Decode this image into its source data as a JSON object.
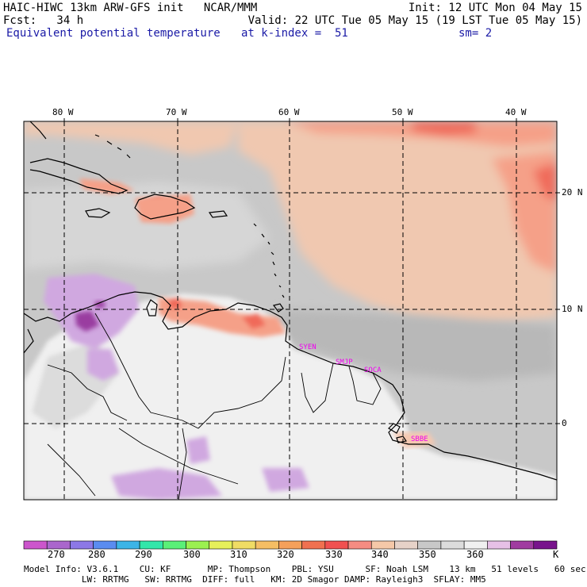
{
  "header": {
    "line1_left": "HAIC-HIWC 13km ARW-GFS init   NCAR/MMM",
    "line1_right": "Init: 12 UTC Mon 04 May 15",
    "line2_left": "Fcst:   34 h",
    "line2_right": "Valid: 22 UTC Tue 05 May 15 (19 LST Tue 05 May 15)",
    "line3_field": "Equivalent potential temperature",
    "line3_level": "at k-index =  51",
    "line3_smooth": "sm= 2"
  },
  "map": {
    "lon_labels": [
      "80 W",
      "70 W",
      "60 W",
      "50 W",
      "40 W"
    ],
    "lat_labels": [
      "20 N",
      "10 N",
      "0"
    ],
    "stations": [
      "SYEN",
      "SMJP",
      "SOCA",
      "SBBE"
    ],
    "colors": {
      "land_gray_light": "#f0f0f0",
      "gray": "#c8c8c8",
      "dark_gray": "#aaaaaa",
      "peach": "#f0c8b0",
      "salmon": "#f5a088",
      "red": "#f06a5a",
      "lilac": "#d0a8e0",
      "purple": "#9a3da0",
      "station_text": "#ee00ee"
    }
  },
  "colorbar": {
    "colors": [
      "#cc55cc",
      "#aa66cc",
      "#8c78e6",
      "#5a8cf0",
      "#3cb4e6",
      "#32e6aa",
      "#5af078",
      "#9bf050",
      "#e6f05a",
      "#f0dc64",
      "#f5be64",
      "#f5a05a",
      "#f07050",
      "#f05050",
      "#f58c82",
      "#f5c8a8",
      "#e6d2c8",
      "#c8c8c8",
      "#dcdcdc",
      "#f0f0f0",
      "#e6c0e6",
      "#a03ca0",
      "#78148c"
    ],
    "labels": [
      "270",
      "280",
      "290",
      "300",
      "310",
      "320",
      "330",
      "340",
      "350",
      "360"
    ],
    "unit": "K"
  },
  "footer": {
    "line1": "Model Info: V3.6.1    CU: KF       MP: Thompson    PBL: YSU      SF: Noah LSM    13 km   51 levels   60 sec",
    "line2": "           LW: RRTMG   SW: RRTMG  DIFF: full   KM: 2D Smagor DAMP: Rayleigh3  SFLAY: MM5"
  }
}
